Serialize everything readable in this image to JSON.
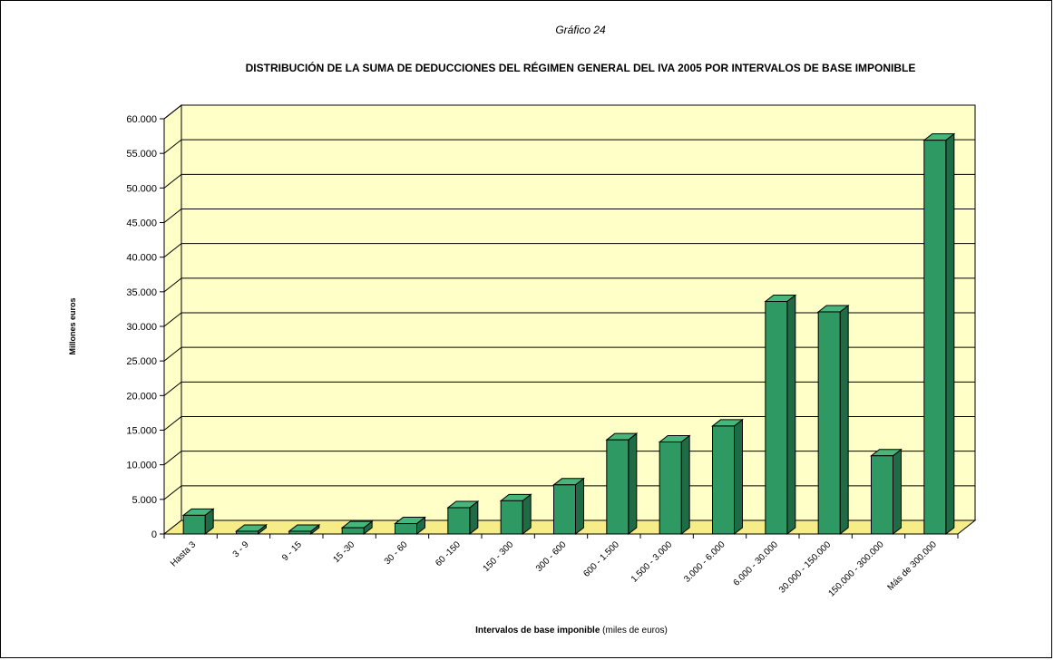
{
  "chart_data": {
    "type": "bar",
    "kicker": "Gráfico 24",
    "title": "DISTRIBUCIÓN DE LA SUMA DE DEDUCCIONES DEL RÉGIMEN GENERAL DEL IVA 2005 POR INTERVALOS DE BASE IMPONIBLE",
    "xlabel_bold": "Intervalos de base imponible",
    "xlabel_rest": " (miles de euros)",
    "ylabel": "Millones euros",
    "ylim": [
      0,
      60000
    ],
    "yticks": [
      0,
      5000,
      10000,
      15000,
      20000,
      25000,
      30000,
      35000,
      40000,
      45000,
      50000,
      55000,
      60000
    ],
    "ytick_labels": [
      "0",
      "5.000",
      "10.000",
      "15.000",
      "20.000",
      "25.000",
      "30.000",
      "35.000",
      "40.000",
      "45.000",
      "50.000",
      "55.000",
      "60.000"
    ],
    "categories": [
      "Hasta 3",
      "3 - 9",
      "9 - 15",
      "15 -30",
      "30 - 60",
      "60 -150",
      "150 - 300",
      "300 - 600",
      "600 - 1.500",
      "1.500 - 3.000",
      "3.000 - 6.000",
      "6.000 - 30.000",
      "30.000 - 150.000",
      "150.000 - 300.000",
      "Más de 300.000"
    ],
    "values": [
      2700,
      400,
      400,
      900,
      1500,
      3800,
      4800,
      7100,
      13600,
      13300,
      15600,
      33600,
      32100,
      11300,
      56900
    ],
    "grid": true,
    "colors": {
      "bar_front": "#2e9963",
      "bar_side": "#1f6b45",
      "bar_top": "#46b67b",
      "wall": "#ffffc8",
      "floor": "#f6ec88",
      "grid": "#000000"
    }
  }
}
